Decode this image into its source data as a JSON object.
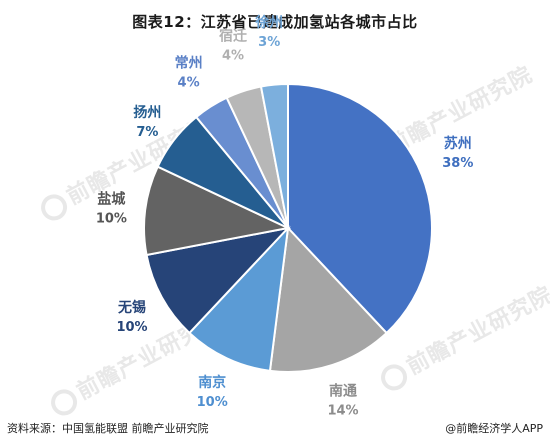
{
  "title": "图表12：江苏省已建成加氢站各城市占比",
  "footer": {
    "source": "资料来源：中国氢能联盟 前瞻产业研究院",
    "brand": "@前瞻经济学人APP"
  },
  "watermark": "前瞻产业研究院",
  "chart_data": {
    "type": "pie",
    "title": "图表12：江苏省已建成加氢站各城市占比",
    "unit": "%",
    "slices": [
      {
        "label": "苏州",
        "value": 38,
        "display": "38%",
        "color": "#4472c4",
        "label_color": "#3f6fbf"
      },
      {
        "label": "南通",
        "value": 14,
        "display": "14%",
        "color": "#a5a5a5",
        "label_color": "#8c8c8c"
      },
      {
        "label": "南京",
        "value": 10,
        "display": "10%",
        "color": "#5b9bd5",
        "label_color": "#4f8fd0"
      },
      {
        "label": "无锡",
        "value": 10,
        "display": "10%",
        "color": "#264478",
        "label_color": "#264478"
      },
      {
        "label": "盐城",
        "value": 10,
        "display": "10%",
        "color": "#636363",
        "label_color": "#555555"
      },
      {
        "label": "扬州",
        "value": 7,
        "display": "7%",
        "color": "#255e91",
        "label_color": "#255e91"
      },
      {
        "label": "常州",
        "value": 4,
        "display": "4%",
        "color": "#698ed0",
        "label_color": "#5a80c6"
      },
      {
        "label": "宿迁",
        "value": 4,
        "display": "4%",
        "color": "#b7b7b7",
        "label_color": "#b0b0b0"
      },
      {
        "label": "徐州",
        "value": 3,
        "display": "3%",
        "color": "#7cafdd",
        "label_color": "#6ea4d6"
      }
    ]
  }
}
